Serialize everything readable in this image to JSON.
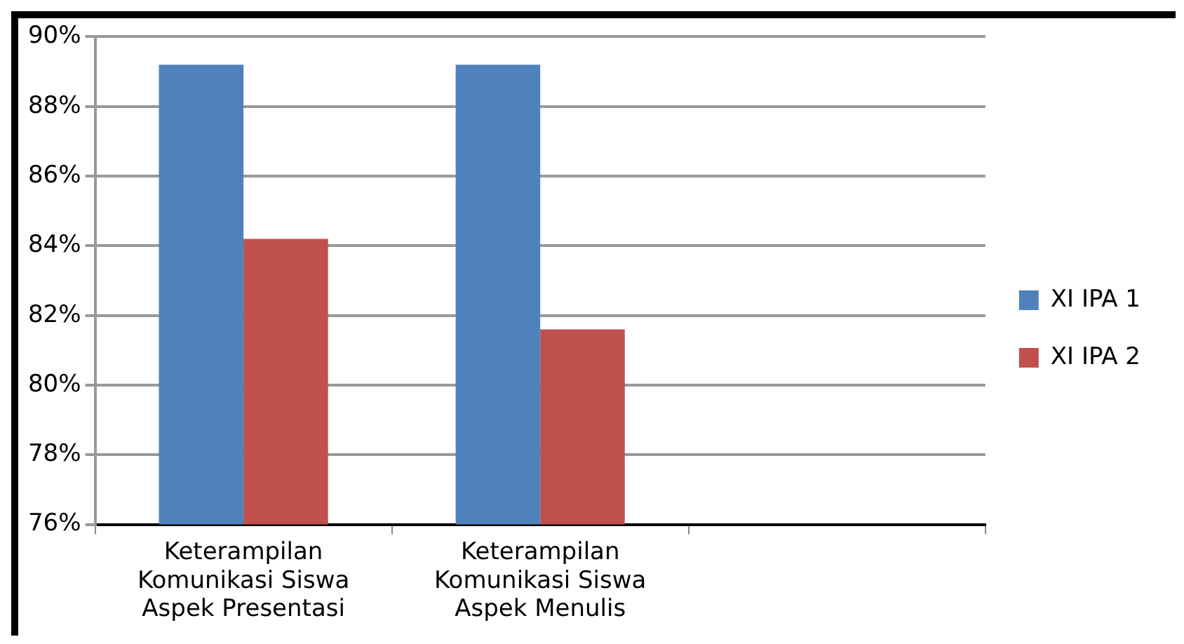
{
  "chart_data": {
    "type": "bar",
    "categories": [
      "Keterampilan Komunikasi Siswa Aspek Presentasi",
      "Keterampilan Komunikasi Siswa Aspek Menulis",
      null
    ],
    "series": [
      {
        "name": "XI IPA 1",
        "color": "#4f81bd",
        "values": [
          89.2,
          89.2,
          null
        ]
      },
      {
        "name": "XI IPA 2",
        "color": "#c0504d",
        "values": [
          84.2,
          81.6,
          null
        ]
      }
    ],
    "ylim": [
      76,
      90
    ],
    "yticks": [
      {
        "value": 76,
        "label": "76%"
      },
      {
        "value": 78,
        "label": "78%"
      },
      {
        "value": 80,
        "label": "80%"
      },
      {
        "value": 82,
        "label": "82%"
      },
      {
        "value": 84,
        "label": "84%"
      },
      {
        "value": 86,
        "label": "86%"
      },
      {
        "value": 88,
        "label": "88%"
      },
      {
        "value": 90,
        "label": "90%"
      }
    ],
    "grid": "y",
    "legend": "right"
  }
}
